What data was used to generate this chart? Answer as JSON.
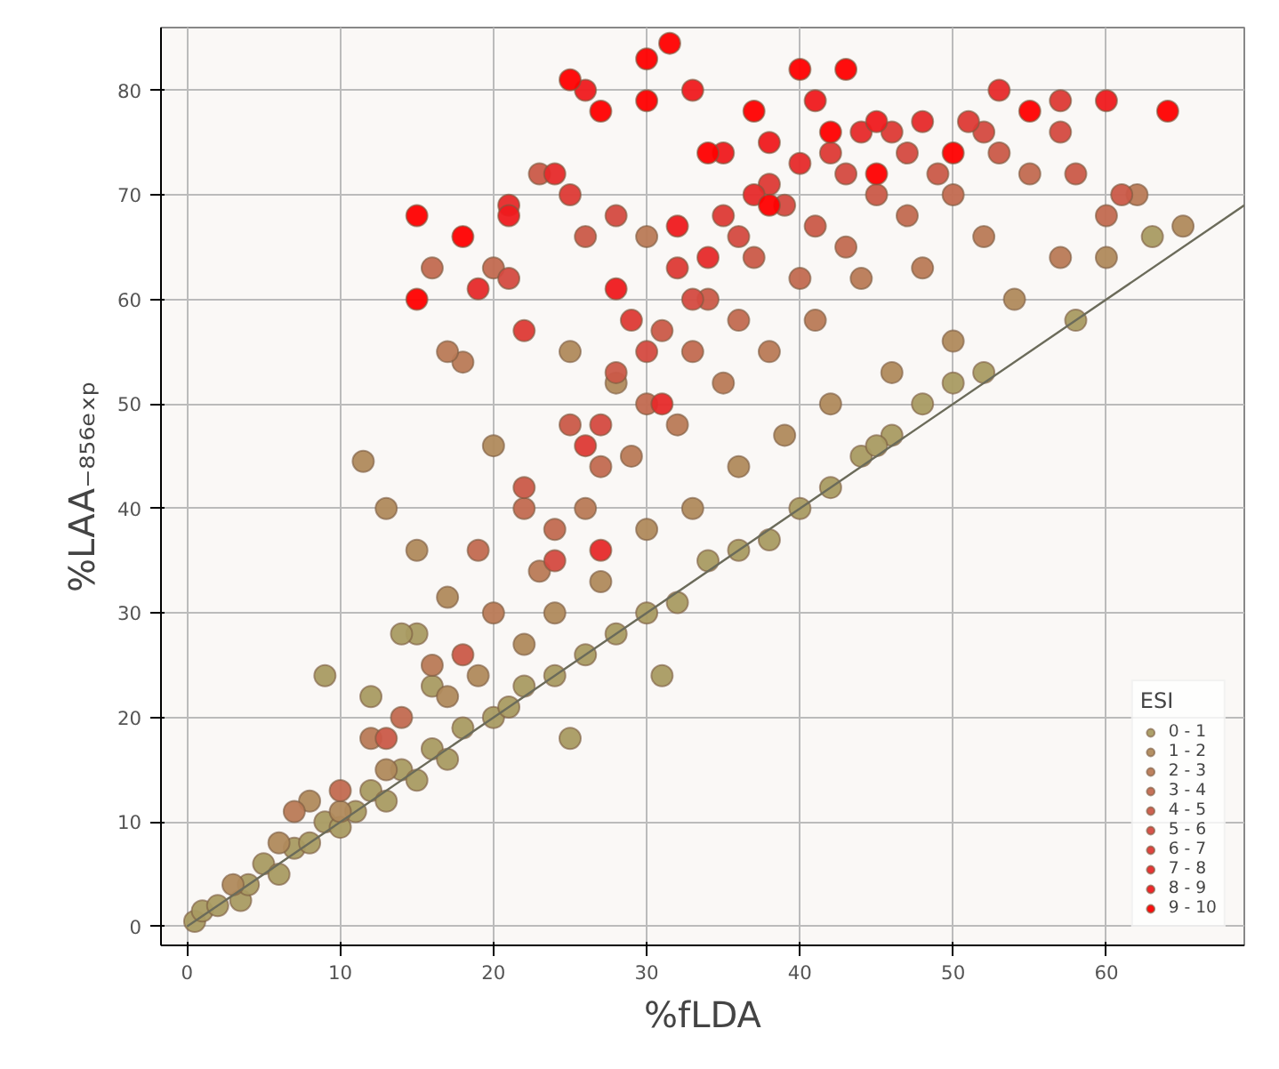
{
  "chart_data": {
    "type": "scatter",
    "xlabel": "%fLDA",
    "ylabel": "%LAA₋₈₅₆ₑₓₚ",
    "legend_title": "ESI",
    "legend": "bottom right",
    "grid": true,
    "marker": "circle",
    "xlim": [
      -1.7,
      69
    ],
    "ylim": [
      -1.8,
      86
    ],
    "xticks": [
      0,
      10,
      20,
      30,
      40,
      50,
      60
    ],
    "yticks": [
      0,
      10,
      20,
      30,
      40,
      50,
      60,
      70,
      80
    ],
    "series": [
      {
        "name": "0 - 1",
        "color": "#a99b62",
        "x": [
          0.5,
          1,
          2,
          3.5,
          4,
          5,
          6,
          7,
          8,
          9,
          10,
          11,
          12,
          13,
          14,
          15,
          16,
          17,
          18,
          20,
          21,
          22,
          24,
          26,
          28,
          30,
          32,
          34,
          36,
          38,
          40,
          42,
          44,
          46,
          48,
          50,
          15,
          9,
          12,
          14,
          31,
          25,
          16,
          63,
          58,
          52,
          45
        ],
        "values": [
          0.5,
          1.5,
          2,
          2.5,
          4,
          6,
          5,
          7.5,
          8,
          10,
          9.5,
          11,
          13,
          12,
          15,
          14,
          17,
          16,
          19,
          20,
          21,
          23,
          24,
          26,
          28,
          30,
          31,
          35,
          36,
          37,
          40,
          42,
          45,
          47,
          50,
          52,
          28,
          24,
          22,
          28,
          24,
          18,
          23,
          66,
          58,
          53,
          46
        ]
      },
      {
        "name": "1 - 2",
        "color": "#b08a5c",
        "x": [
          3,
          6,
          8,
          10,
          13,
          17,
          19,
          22,
          24,
          27,
          30,
          33,
          36,
          39,
          42,
          46,
          50,
          54,
          60,
          65,
          11.5,
          13,
          17,
          15,
          20,
          25,
          28
        ],
        "values": [
          4,
          8,
          12,
          11,
          15,
          22,
          24,
          27,
          30,
          33,
          38,
          40,
          44,
          47,
          50,
          53,
          56,
          60,
          64,
          67,
          44.5,
          40,
          31.5,
          36,
          46,
          55,
          52
        ]
      },
      {
        "name": "2 - 3",
        "color": "#b97a56",
        "x": [
          7,
          12,
          16,
          20,
          23,
          26,
          29,
          32,
          35,
          38,
          41,
          44,
          48,
          52,
          57,
          62,
          18,
          17,
          30
        ],
        "values": [
          11,
          18,
          25,
          30,
          34,
          40,
          45,
          48,
          52,
          55,
          58,
          62,
          63,
          66,
          64,
          70,
          54,
          55,
          66
        ]
      },
      {
        "name": "3 - 4",
        "color": "#c26a50",
        "x": [
          10,
          14,
          19,
          22,
          24,
          27,
          30,
          33,
          36,
          40,
          43,
          47,
          50,
          55,
          60,
          20,
          16
        ],
        "values": [
          13,
          20,
          36,
          40,
          38,
          44,
          50,
          55,
          58,
          62,
          65,
          68,
          70,
          72,
          68,
          63,
          63
        ]
      },
      {
        "name": "4 - 5",
        "color": "#ca5a48",
        "x": [
          13,
          18,
          22,
          25,
          28,
          31,
          34,
          37,
          41,
          45,
          49,
          53,
          58,
          61,
          23,
          26
        ],
        "values": [
          18,
          26,
          42,
          48,
          53,
          57,
          60,
          64,
          67,
          70,
          72,
          74,
          72,
          70,
          72,
          66
        ]
      },
      {
        "name": "5 - 6",
        "color": "#d44a40",
        "x": [
          24,
          27,
          30,
          33,
          36,
          39,
          43,
          47,
          52,
          57,
          28,
          21
        ],
        "values": [
          35,
          48,
          55,
          60,
          66,
          69,
          72,
          74,
          76,
          76,
          68,
          62
        ]
      },
      {
        "name": "6 - 7",
        "color": "#dd3a35",
        "x": [
          26,
          29,
          32,
          35,
          38,
          42,
          46,
          51,
          57,
          25,
          22
        ],
        "values": [
          46,
          58,
          63,
          68,
          71,
          74,
          76,
          77,
          79,
          70,
          57
        ]
      },
      {
        "name": "7 - 8",
        "color": "#e62a2a",
        "x": [
          27,
          31,
          34,
          37,
          40,
          44,
          48,
          53,
          24,
          19,
          21
        ],
        "values": [
          36,
          50,
          64,
          70,
          73,
          76,
          77,
          80,
          72,
          61,
          69
        ]
      },
      {
        "name": "8 - 9",
        "color": "#ef1a1e",
        "x": [
          28,
          32,
          35,
          38,
          41,
          45,
          60,
          26,
          33,
          21
        ],
        "values": [
          61,
          67,
          74,
          75,
          79,
          77,
          79,
          80,
          80,
          68
        ]
      },
      {
        "name": "9 - 10",
        "color": "#ff0000",
        "x": [
          15,
          15,
          18,
          25,
          30,
          31.5,
          40,
          43,
          37,
          64,
          55,
          27,
          30,
          42,
          45,
          38,
          34,
          50
        ],
        "values": [
          68,
          60,
          66,
          81,
          83,
          84.5,
          82,
          82,
          78,
          78,
          78,
          78,
          79,
          76,
          72,
          69,
          74,
          74
        ]
      },
      {
        "type": "line",
        "marker": "none",
        "color": "#6b6b5a",
        "x": [
          0,
          69
        ],
        "values": [
          0,
          69
        ]
      }
    ]
  }
}
